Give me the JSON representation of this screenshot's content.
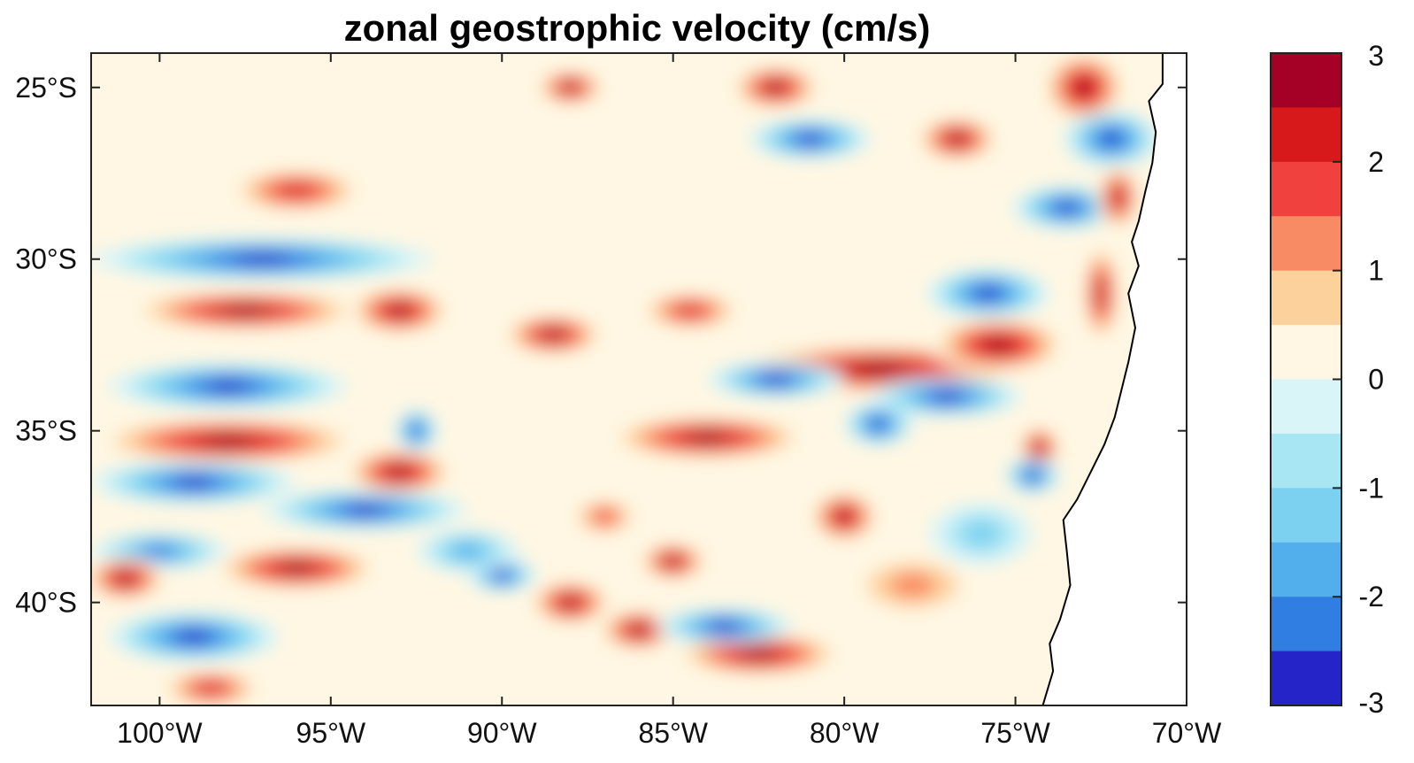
{
  "chart_data": {
    "type": "heatmap",
    "title": "zonal geostrophic velocity (cm/s)",
    "xlabel": "",
    "ylabel": "",
    "xlim": [
      -102,
      -70
    ],
    "ylim": [
      -43,
      -24
    ],
    "x_ticks": [
      {
        "value": -100,
        "label": "100°W"
      },
      {
        "value": -95,
        "label": "95°W"
      },
      {
        "value": -90,
        "label": "90°W"
      },
      {
        "value": -85,
        "label": "85°W"
      },
      {
        "value": -80,
        "label": "80°W"
      },
      {
        "value": -75,
        "label": "75°W"
      },
      {
        "value": -70,
        "label": "70°W"
      }
    ],
    "y_ticks": [
      {
        "value": -25,
        "label": "25°S"
      },
      {
        "value": -30,
        "label": "30°S"
      },
      {
        "value": -35,
        "label": "35°S"
      },
      {
        "value": -40,
        "label": "40°S"
      }
    ],
    "colorbar": {
      "min": -3,
      "max": 3,
      "tick_values": [
        3,
        2,
        1,
        0,
        -1,
        -2,
        -3
      ],
      "tick_labels": [
        "3",
        "2",
        "1",
        "0",
        "-1",
        "-2",
        "-3"
      ],
      "levels": [
        {
          "from": 2.5,
          "to": 3.0,
          "color": "#a50026"
        },
        {
          "from": 2.0,
          "to": 2.5,
          "color": "#d7191c"
        },
        {
          "from": 1.5,
          "to": 2.0,
          "color": "#f0413f"
        },
        {
          "from": 1.0,
          "to": 1.5,
          "color": "#f98b64"
        },
        {
          "from": 0.5,
          "to": 1.0,
          "color": "#fdd19c"
        },
        {
          "from": 0.0,
          "to": 0.5,
          "color": "#fff7e3"
        },
        {
          "from": -0.5,
          "to": 0.0,
          "color": "#daf5f8"
        },
        {
          "from": -1.0,
          "to": -0.5,
          "color": "#a9e6f4"
        },
        {
          "from": -1.5,
          "to": -1.0,
          "color": "#7cd0f0"
        },
        {
          "from": -2.0,
          "to": -1.5,
          "color": "#52afec"
        },
        {
          "from": -2.5,
          "to": -2.0,
          "color": "#317ee3"
        },
        {
          "from": -3.0,
          "to": -2.5,
          "color": "#2424c8"
        }
      ]
    },
    "features": [
      {
        "lon": -79.0,
        "lat": -33.2,
        "value": 3.0,
        "rlon": 4.5,
        "rlat": 0.6
      },
      {
        "lon": -75.5,
        "lat": -32.5,
        "value": 3.0,
        "rlon": 2.0,
        "rlat": 0.7
      },
      {
        "lon": -77.0,
        "lat": -34.0,
        "value": -2.7,
        "rlon": 2.2,
        "rlat": 0.45
      },
      {
        "lon": -75.8,
        "lat": -31.0,
        "value": -3.0,
        "rlon": 1.8,
        "rlat": 0.6
      },
      {
        "lon": -73.0,
        "lat": -25.0,
        "value": 3.0,
        "rlon": 1.2,
        "rlat": 0.9
      },
      {
        "lon": -72.2,
        "lat": -26.5,
        "value": -3.0,
        "rlon": 1.4,
        "rlat": 0.7
      },
      {
        "lon": -73.5,
        "lat": -28.5,
        "value": -3.0,
        "rlon": 1.6,
        "rlat": 0.5
      },
      {
        "lon": -72.0,
        "lat": -28.2,
        "value": 3.0,
        "rlon": 0.6,
        "rlat": 0.8
      },
      {
        "lon": -72.5,
        "lat": -31.0,
        "value": 3.0,
        "rlon": 0.5,
        "rlat": 1.3
      },
      {
        "lon": -74.3,
        "lat": -35.5,
        "value": 3.0,
        "rlon": 0.6,
        "rlat": 0.5
      },
      {
        "lon": -74.5,
        "lat": -36.3,
        "value": -3.0,
        "rlon": 0.8,
        "rlat": 0.4
      },
      {
        "lon": -76.7,
        "lat": -26.5,
        "value": 3.0,
        "rlon": 1.2,
        "rlat": 0.5
      },
      {
        "lon": -81.0,
        "lat": -26.5,
        "value": -3.0,
        "rlon": 1.8,
        "rlat": 0.45
      },
      {
        "lon": -82.0,
        "lat": -25.0,
        "value": 2.8,
        "rlon": 1.3,
        "rlat": 0.5
      },
      {
        "lon": -88.0,
        "lat": -25.0,
        "value": 3.0,
        "rlon": 1.0,
        "rlat": 0.35
      },
      {
        "lon": -97.0,
        "lat": -30.0,
        "value": -3.0,
        "rlon": 5.0,
        "rlat": 0.5
      },
      {
        "lon": -97.5,
        "lat": -31.5,
        "value": 3.0,
        "rlon": 3.5,
        "rlat": 0.45
      },
      {
        "lon": -93.0,
        "lat": -31.5,
        "value": 3.0,
        "rlon": 1.5,
        "rlat": 0.55
      },
      {
        "lon": -96.0,
        "lat": -28.0,
        "value": 2.2,
        "rlon": 2.0,
        "rlat": 0.5
      },
      {
        "lon": -98.0,
        "lat": -33.7,
        "value": -3.0,
        "rlon": 3.5,
        "rlat": 0.55
      },
      {
        "lon": -98.0,
        "lat": -35.3,
        "value": 3.0,
        "rlon": 4.0,
        "rlat": 0.55
      },
      {
        "lon": -93.0,
        "lat": -36.2,
        "value": 3.0,
        "rlon": 1.6,
        "rlat": 0.55
      },
      {
        "lon": -99.0,
        "lat": -36.5,
        "value": -3.0,
        "rlon": 3.0,
        "rlat": 0.5
      },
      {
        "lon": -94.0,
        "lat": -37.3,
        "value": -3.0,
        "rlon": 3.0,
        "rlat": 0.45
      },
      {
        "lon": -100.0,
        "lat": -38.5,
        "value": -2.5,
        "rlon": 2.0,
        "rlat": 0.4
      },
      {
        "lon": -96.0,
        "lat": -39.0,
        "value": 3.0,
        "rlon": 2.5,
        "rlat": 0.5
      },
      {
        "lon": -101.0,
        "lat": -39.3,
        "value": 3.0,
        "rlon": 1.2,
        "rlat": 0.5
      },
      {
        "lon": -99.0,
        "lat": -41.0,
        "value": -3.0,
        "rlon": 2.5,
        "rlat": 0.6
      },
      {
        "lon": -98.5,
        "lat": -42.5,
        "value": 2.5,
        "rlon": 1.5,
        "rlat": 0.4
      },
      {
        "lon": -88.0,
        "lat": -40.0,
        "value": 3.0,
        "rlon": 1.2,
        "rlat": 0.5
      },
      {
        "lon": -86.0,
        "lat": -40.8,
        "value": 3.0,
        "rlon": 1.2,
        "rlat": 0.45
      },
      {
        "lon": -82.5,
        "lat": -41.5,
        "value": 3.0,
        "rlon": 2.5,
        "rlat": 0.5
      },
      {
        "lon": -83.5,
        "lat": -40.7,
        "value": -3.0,
        "rlon": 2.0,
        "rlat": 0.4
      },
      {
        "lon": -90.0,
        "lat": -39.2,
        "value": -3.0,
        "rlon": 1.0,
        "rlat": 0.35
      },
      {
        "lon": -84.0,
        "lat": -35.2,
        "value": 3.0,
        "rlon": 3.0,
        "rlat": 0.5
      },
      {
        "lon": -88.5,
        "lat": -32.2,
        "value": 2.8,
        "rlon": 1.5,
        "rlat": 0.45
      },
      {
        "lon": -84.5,
        "lat": -31.5,
        "value": 2.5,
        "rlon": 1.5,
        "rlat": 0.4
      },
      {
        "lon": -80.0,
        "lat": -37.5,
        "value": 3.0,
        "rlon": 1.0,
        "rlat": 0.6
      },
      {
        "lon": -79.0,
        "lat": -34.8,
        "value": -3.0,
        "rlon": 1.0,
        "rlat": 0.5
      },
      {
        "lon": -82.0,
        "lat": -33.5,
        "value": -2.6,
        "rlon": 2.0,
        "rlat": 0.4
      },
      {
        "lon": -92.5,
        "lat": -35.0,
        "value": -3.0,
        "rlon": 0.6,
        "rlat": 0.5
      },
      {
        "lon": -85.0,
        "lat": -38.8,
        "value": 2.6,
        "rlon": 1.0,
        "rlat": 0.4
      },
      {
        "lon": -76.0,
        "lat": -38.0,
        "value": -1.5,
        "rlon": 1.5,
        "rlat": 0.8
      },
      {
        "lon": -78.0,
        "lat": -39.5,
        "value": 1.2,
        "rlon": 2.0,
        "rlat": 0.8
      },
      {
        "lon": -87.0,
        "lat": -37.5,
        "value": 2.0,
        "rlon": 1.0,
        "rlat": 0.4
      },
      {
        "lon": -91.0,
        "lat": -38.5,
        "value": -2.0,
        "rlon": 1.5,
        "rlat": 0.5
      }
    ],
    "land_boundary": [
      [
        -70.7,
        -24.0
      ],
      [
        -70.7,
        -24.9
      ],
      [
        -71.1,
        -25.4
      ],
      [
        -70.9,
        -26.3
      ],
      [
        -71.0,
        -27.2
      ],
      [
        -71.2,
        -28.0
      ],
      [
        -71.4,
        -28.9
      ],
      [
        -71.6,
        -29.5
      ],
      [
        -71.4,
        -30.2
      ],
      [
        -71.7,
        -31.0
      ],
      [
        -71.5,
        -32.0
      ],
      [
        -71.7,
        -33.0
      ],
      [
        -71.9,
        -33.8
      ],
      [
        -72.1,
        -34.6
      ],
      [
        -72.4,
        -35.4
      ],
      [
        -72.8,
        -36.2
      ],
      [
        -73.2,
        -37.0
      ],
      [
        -73.6,
        -37.6
      ],
      [
        -73.5,
        -38.5
      ],
      [
        -73.4,
        -39.5
      ],
      [
        -73.7,
        -40.5
      ],
      [
        -74.0,
        -41.2
      ],
      [
        -73.9,
        -42.0
      ],
      [
        -74.2,
        -43.0
      ],
      [
        -70.0,
        -43.0
      ],
      [
        -70.0,
        -24.0
      ]
    ]
  }
}
